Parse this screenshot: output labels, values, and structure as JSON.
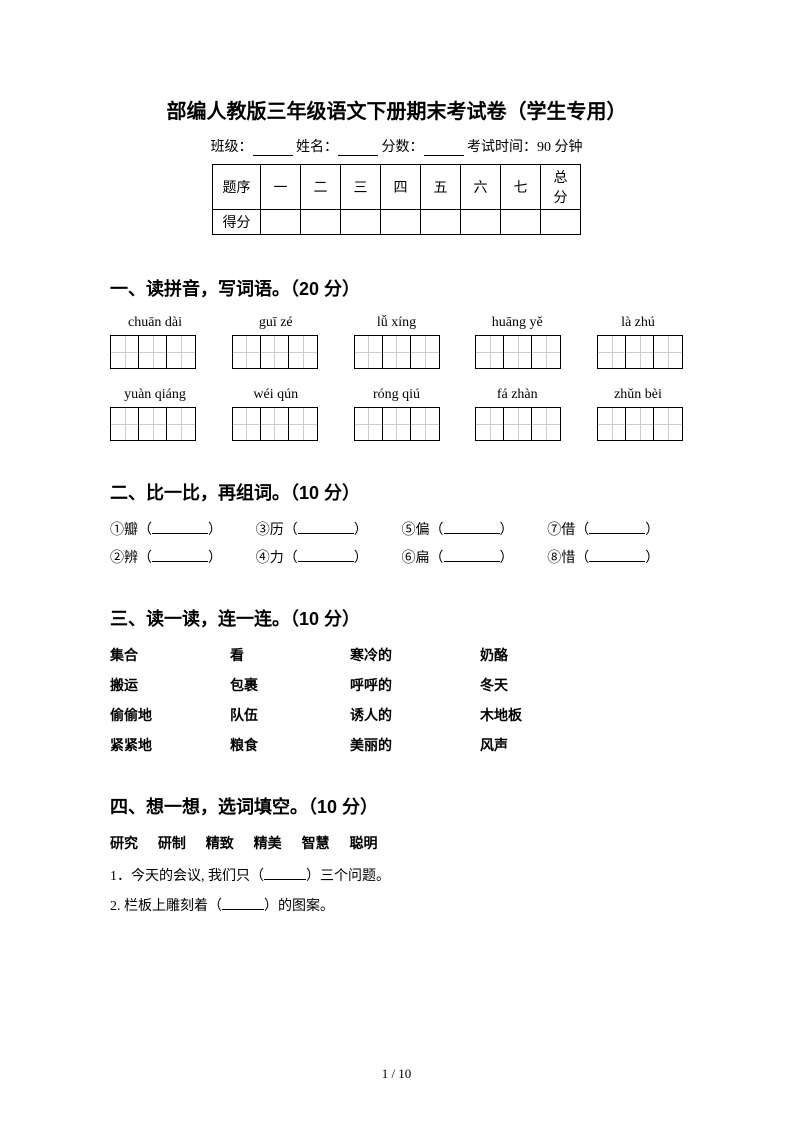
{
  "title": "部编人教版三年级语文下册期末考试卷（学生专用）",
  "info": {
    "class_label": "班级：",
    "name_label": "姓名：",
    "score_label": "分数：",
    "time_label": "考试时间：90 分钟"
  },
  "score_table": {
    "row1_label": "题序",
    "row2_label": "得分",
    "cols": [
      "一",
      "二",
      "三",
      "四",
      "五",
      "六",
      "七",
      "总分"
    ]
  },
  "section1": {
    "title": "一、读拼音，写词语。（20 分）",
    "row1": [
      "chuān dài",
      "guī zé",
      "lǚ xíng",
      "huāng yě",
      "là zhú"
    ],
    "row2": [
      "yuàn qiáng",
      "wéi qún",
      "róng qiú",
      "fá zhàn",
      "zhǔn bèi"
    ]
  },
  "section2": {
    "title": "二、比一比，再组词。（10 分）",
    "items": [
      "①瓣（",
      "③历（",
      "⑤偏（",
      "⑦借（",
      "②辨（",
      "④力（",
      "⑥扁（",
      "⑧惜（"
    ]
  },
  "section3": {
    "title": "三、读一读，连一连。（10 分）",
    "rows": [
      [
        "集合",
        "看",
        "寒冷的",
        "奶酪"
      ],
      [
        "搬运",
        "包裹",
        "呼呼的",
        "冬天"
      ],
      [
        "偷偷地",
        "队伍",
        "诱人的",
        "木地板"
      ],
      [
        "紧紧地",
        "粮食",
        "美丽的",
        "风声"
      ]
    ]
  },
  "section4": {
    "title": "四、想一想，选词填空。（10 分）",
    "words": [
      "研究",
      "研制",
      "精致",
      "精美",
      "智慧",
      "聪明"
    ],
    "q1_pre": "1．今天的会议, 我们只（",
    "q1_post": "）三个问题。",
    "q2_pre": "2. 栏板上雕刻着（",
    "q2_post": "）的图案。"
  },
  "page_number": "1 / 10"
}
